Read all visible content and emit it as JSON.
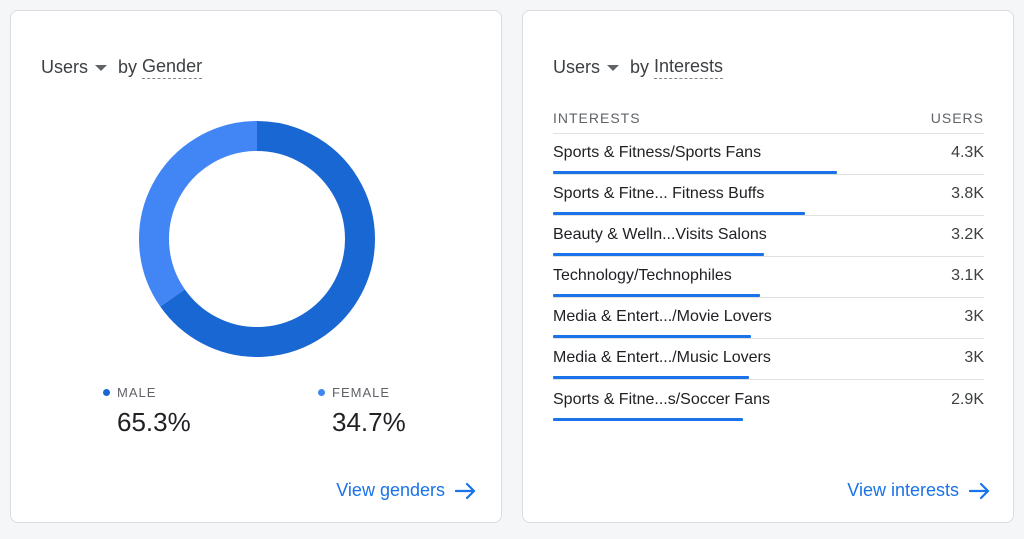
{
  "gender_card": {
    "metric": "Users",
    "by": "by",
    "dimension": "Gender",
    "colors": {
      "male": "#1967d2",
      "female": "#4285f4"
    },
    "segments": [
      {
        "label": "MALE",
        "value_text": "65.3%",
        "fraction": 0.653
      },
      {
        "label": "FEMALE",
        "value_text": "34.7%",
        "fraction": 0.347
      }
    ],
    "link": "View genders"
  },
  "interests_card": {
    "metric": "Users",
    "by": "by",
    "dimension": "Interests",
    "columns": {
      "name": "INTERESTS",
      "value": "USERS"
    },
    "rows": [
      {
        "name": "Sports & Fitness/Sports Fans",
        "value": "4.3K",
        "bar_fraction": 0.66
      },
      {
        "name": "Sports & Fitne... Fitness Buffs",
        "value": "3.8K",
        "bar_fraction": 0.585
      },
      {
        "name": "Beauty & Welln...Visits Salons",
        "value": "3.2K",
        "bar_fraction": 0.49
      },
      {
        "name": "Technology/Technophiles",
        "value": "3.1K",
        "bar_fraction": 0.48
      },
      {
        "name": "Media & Entert.../Movie Lovers",
        "value": "3K",
        "bar_fraction": 0.46
      },
      {
        "name": "Media & Entert.../Music Lovers",
        "value": "3K",
        "bar_fraction": 0.455
      },
      {
        "name": "Sports & Fitne...s/Soccer Fans",
        "value": "2.9K",
        "bar_fraction": 0.44
      }
    ],
    "link": "View interests"
  },
  "accent_color": "#1a73e8"
}
